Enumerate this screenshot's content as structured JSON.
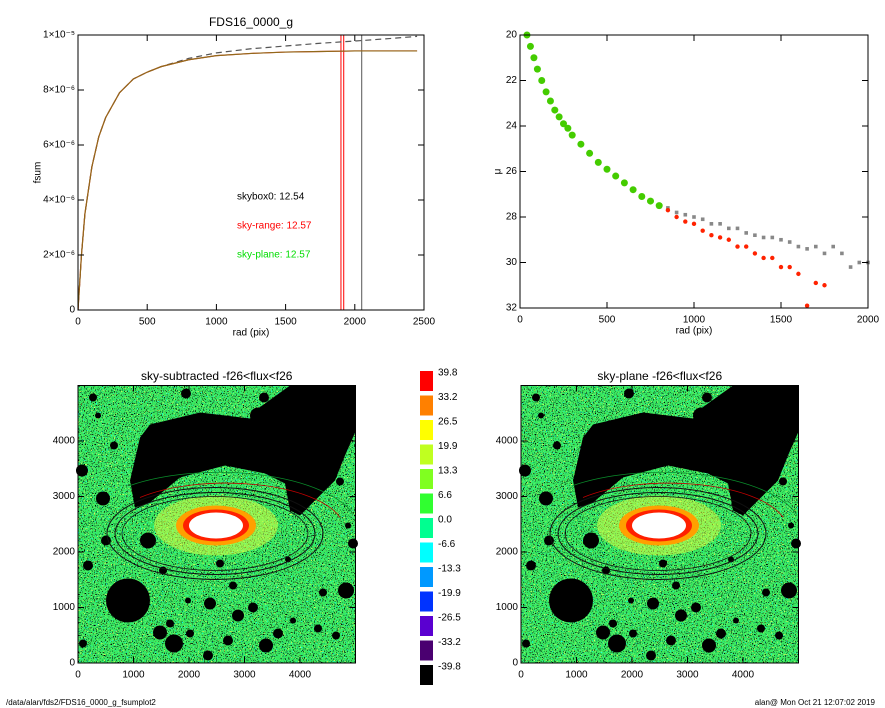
{
  "chart_data": [
    {
      "type": "line",
      "title": "FDS16_0000_g",
      "xlabel": "rad (pix)",
      "ylabel": "fsum",
      "xlim": [
        0,
        2500
      ],
      "xticks": [
        0,
        500,
        1000,
        1500,
        2000,
        2500
      ],
      "ylim": [
        0,
        1e-05
      ],
      "yticks": [
        0,
        {
          "value": 2e-06,
          "label": "2×10⁻⁶"
        },
        {
          "value": 4e-06,
          "label": "4×10⁻⁶"
        },
        {
          "value": 6e-06,
          "label": "6×10⁻⁶"
        },
        {
          "value": 8e-06,
          "label": "8×10⁻⁶"
        },
        {
          "value": 1e-05,
          "label": "1×10⁻⁵"
        }
      ],
      "x": [
        0,
        25,
        50,
        100,
        150,
        200,
        300,
        400,
        500,
        600,
        800,
        1000,
        1250,
        1500,
        1750,
        2000,
        2250,
        2450
      ],
      "series": [
        {
          "color": "#555555",
          "dash": true,
          "values": [
            0,
            2e-06,
            3.5e-06,
            5.2e-06,
            6.3e-06,
            7e-06,
            7.9e-06,
            8.4e-06,
            8.65e-06,
            8.85e-06,
            9.15e-06,
            9.35e-06,
            9.5e-06,
            9.6e-06,
            9.7e-06,
            9.78e-06,
            9.87e-06,
            9.95e-06
          ]
        },
        {
          "color": "#ff0000",
          "dash": false,
          "values": [
            0,
            2e-06,
            3.5e-06,
            5.2e-06,
            6.3e-06,
            7e-06,
            7.9e-06,
            8.4e-06,
            8.65e-06,
            8.85e-06,
            9.1e-06,
            9.25e-06,
            9.33e-06,
            9.38e-06,
            9.4e-06,
            9.42e-06,
            9.42e-06,
            9.42e-06
          ]
        },
        {
          "color": "#6b8e23",
          "dash": false,
          "values": [
            0,
            2e-06,
            3.5e-06,
            5.2e-06,
            6.3e-06,
            7e-06,
            7.9e-06,
            8.4e-06,
            8.65e-06,
            8.85e-06,
            9.1e-06,
            9.25e-06,
            9.33e-06,
            9.38e-06,
            9.4e-06,
            9.42e-06,
            9.42e-06,
            9.42e-06
          ]
        }
      ],
      "vlines": [
        {
          "value": 1900,
          "color": "#ff0000"
        },
        {
          "value": 1920,
          "color": "#ff0000"
        },
        {
          "value": 2050,
          "color": "#555555"
        }
      ],
      "annotations": [
        {
          "text": "skybox0: 12.54",
          "color": "#000000"
        },
        {
          "text": "sky-range: 12.57",
          "color": "#ff0000"
        },
        {
          "text": "sky-plane: 12.57",
          "color": "#00dd00"
        }
      ]
    },
    {
      "type": "scatter",
      "xlabel": "rad (pix)",
      "ylabel": "μ",
      "xlim": [
        0,
        2000
      ],
      "xticks": [
        0,
        500,
        1000,
        1500,
        2000
      ],
      "ylim": [
        32,
        20
      ],
      "yticks": [
        20,
        22,
        24,
        26,
        28,
        30,
        32
      ],
      "series": [
        {
          "color": "#888888",
          "marker": "square",
          "x": [
            850,
            900,
            950,
            1000,
            1050,
            1100,
            1150,
            1200,
            1250,
            1300,
            1350,
            1400,
            1450,
            1500,
            1550,
            1600,
            1650,
            1700,
            1750,
            1800,
            1850,
            1900,
            1950,
            2000
          ],
          "values": [
            27.6,
            27.8,
            27.9,
            28.0,
            28.1,
            28.3,
            28.3,
            28.5,
            28.5,
            28.7,
            28.8,
            28.9,
            28.9,
            29.0,
            29.1,
            29.3,
            29.4,
            29.3,
            29.6,
            29.3,
            29.6,
            30.2,
            30.0,
            30.0
          ]
        },
        {
          "color": "#ff2200",
          "marker": "circle",
          "x": [
            850,
            900,
            950,
            1000,
            1050,
            1100,
            1150,
            1200,
            1250,
            1300,
            1350,
            1400,
            1450,
            1500,
            1550,
            1600,
            1650,
            1700,
            1750
          ],
          "values": [
            27.7,
            28.0,
            28.2,
            28.3,
            28.6,
            28.8,
            28.9,
            29.0,
            29.3,
            29.3,
            29.6,
            29.8,
            29.8,
            30.2,
            30.2,
            30.5,
            31.9,
            30.9,
            31.0
          ]
        },
        {
          "color": "#44cc00",
          "marker": "circle",
          "x": [
            40,
            60,
            80,
            100,
            125,
            150,
            175,
            200,
            225,
            250,
            275,
            300,
            350,
            400,
            450,
            500,
            550,
            600,
            650,
            700,
            750,
            800
          ],
          "values": [
            20.0,
            20.5,
            21.0,
            21.5,
            22.0,
            22.5,
            22.9,
            23.3,
            23.6,
            23.9,
            24.1,
            24.4,
            24.8,
            25.2,
            25.6,
            25.9,
            26.2,
            26.5,
            26.8,
            27.1,
            27.3,
            27.5
          ]
        }
      ]
    },
    {
      "type": "image",
      "title": "sky-subtracted -f26<flux<f26",
      "xlim": [
        0,
        5000
      ],
      "xticks": [
        0,
        1000,
        2000,
        3000,
        4000
      ],
      "ylim": [
        0,
        5000
      ],
      "yticks": [
        0,
        1000,
        2000,
        3000,
        4000
      ]
    },
    {
      "type": "image",
      "title": "sky-plane -f26<flux<f26",
      "xlim": [
        0,
        5000
      ],
      "xticks": [
        0,
        1000,
        2000,
        3000,
        4000
      ],
      "ylim": [
        0,
        5000
      ],
      "yticks": [
        0,
        1000,
        2000,
        3000,
        4000
      ]
    }
  ],
  "colorbar": {
    "levels": [
      39.8,
      33.2,
      26.5,
      19.9,
      13.3,
      6.6,
      {
        "value": 0,
        "label": "0.0"
      },
      -6.6,
      -13.3,
      -19.9,
      -26.5,
      -33.2,
      -39.8
    ],
    "colors": [
      "#ff0000",
      "#ff8000",
      "#ffff00",
      "#c0ff20",
      "#80ff20",
      "#30ff30",
      "#00ff90",
      "#00ffff",
      "#0099ff",
      "#0033ff",
      "#5a00d0",
      "#4a0070",
      "#000000"
    ]
  },
  "footer": {
    "left": "/data/alan/fds2/FDS16_0000_g_fsumplot2",
    "right": "alan@  Mon Oct 21 12:07:02 2019"
  }
}
